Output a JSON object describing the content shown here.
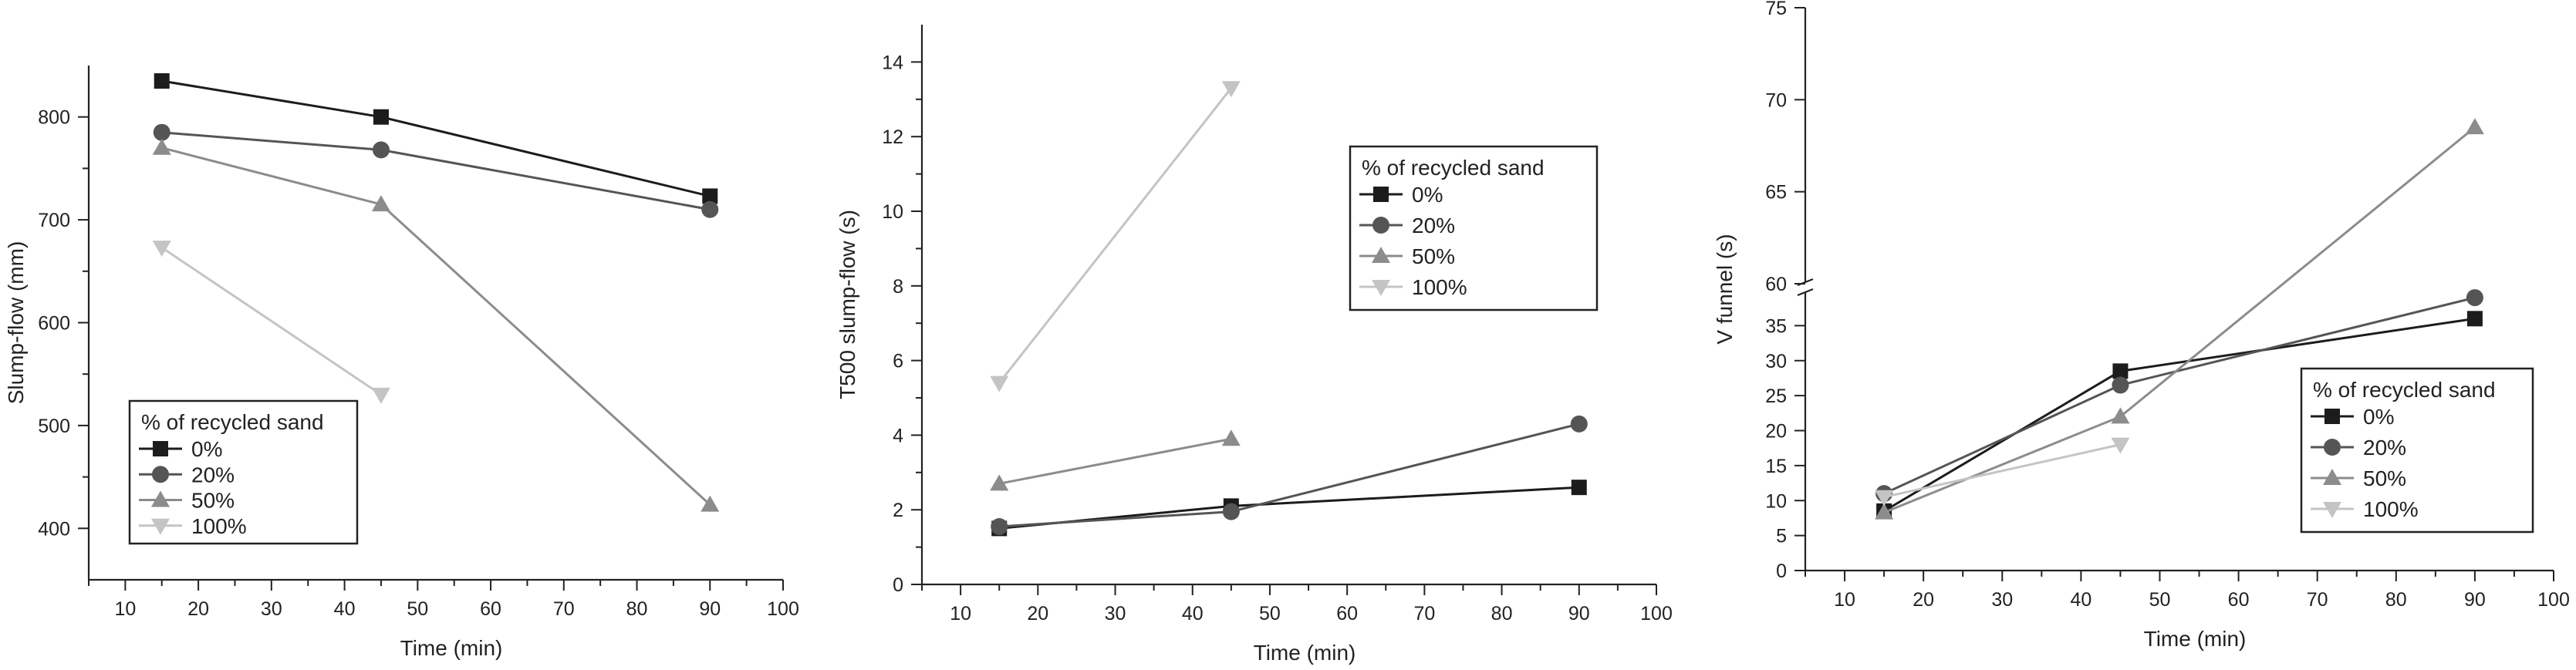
{
  "colors": {
    "0%": "#1c1c1c",
    "20%": "#555555",
    "50%": "#8c8c8c",
    "100%": "#c4c4c4"
  },
  "markers": {
    "0%": "square",
    "20%": "circle",
    "50%": "triangle-up",
    "100%": "triangle-down"
  },
  "chart_data": [
    {
      "type": "line",
      "xlabel": "Time (min)",
      "ylabel": "Slump-flow (mm)",
      "xlim": [
        5,
        100
      ],
      "ylim": [
        350,
        850
      ],
      "xticks": [
        10,
        20,
        30,
        40,
        50,
        60,
        70,
        80,
        90,
        100
      ],
      "yticks": [
        400,
        500,
        600,
        700,
        800
      ],
      "legend": {
        "title": "% of recycled sand",
        "position": "bottom-left"
      },
      "series": [
        {
          "name": "0%",
          "x": [
            15,
            45,
            90
          ],
          "y": [
            835,
            800,
            723
          ]
        },
        {
          "name": "20%",
          "x": [
            15,
            45,
            90
          ],
          "y": [
            785,
            768,
            710
          ]
        },
        {
          "name": "50%",
          "x": [
            15,
            45,
            90
          ],
          "y": [
            770,
            715,
            423
          ]
        },
        {
          "name": "100%",
          "x": [
            15,
            45
          ],
          "y": [
            673,
            530
          ]
        }
      ]
    },
    {
      "type": "line",
      "xlabel": "Time (min)",
      "ylabel": "T500 slump-flow (s)",
      "xlim": [
        5,
        100
      ],
      "ylim": [
        0,
        15
      ],
      "xticks": [
        10,
        20,
        30,
        40,
        50,
        60,
        70,
        80,
        90,
        100
      ],
      "yticks": [
        0,
        2,
        4,
        6,
        8,
        10,
        12,
        14
      ],
      "legend": {
        "title": "% of recycled sand",
        "position": "top-right"
      },
      "series": [
        {
          "name": "0%",
          "x": [
            15,
            45,
            90
          ],
          "y": [
            1.5,
            2.1,
            2.6
          ]
        },
        {
          "name": "20%",
          "x": [
            15,
            45,
            90
          ],
          "y": [
            1.55,
            1.95,
            4.3
          ]
        },
        {
          "name": "50%",
          "x": [
            15,
            45
          ],
          "y": [
            2.7,
            3.9
          ]
        },
        {
          "name": "100%",
          "x": [
            15,
            45
          ],
          "y": [
            5.4,
            13.3
          ]
        }
      ]
    },
    {
      "type": "line",
      "xlabel": "Time (min)",
      "ylabel": "V funnel (s)",
      "xlim": [
        5,
        100
      ],
      "axis_break": {
        "lower_max": 40,
        "upper_min": 60
      },
      "ylim_lower": [
        0,
        40
      ],
      "ylim_upper": [
        60,
        75
      ],
      "xticks": [
        10,
        20,
        30,
        40,
        50,
        60,
        70,
        80,
        90,
        100
      ],
      "yticks_lower": [
        0,
        5,
        10,
        15,
        20,
        25,
        30,
        35
      ],
      "yticks_upper": [
        60,
        65,
        70,
        75
      ],
      "legend": {
        "title": "% of recycled sand",
        "position": "bottom-right"
      },
      "series": [
        {
          "name": "0%",
          "x": [
            15,
            45,
            90
          ],
          "y": [
            8.5,
            28.5,
            36
          ]
        },
        {
          "name": "20%",
          "x": [
            15,
            45,
            90
          ],
          "y": [
            11,
            26.5,
            39
          ]
        },
        {
          "name": "50%",
          "x": [
            15,
            45,
            90
          ],
          "y": [
            8.3,
            22,
            68.5
          ]
        },
        {
          "name": "100%",
          "x": [
            15,
            45
          ],
          "y": [
            10.5,
            18
          ]
        }
      ]
    }
  ]
}
